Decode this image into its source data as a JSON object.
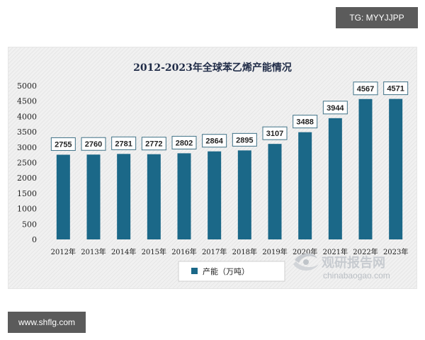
{
  "tags": {
    "top": "TG: MYYJJPP",
    "bottom": "www.shflg.com"
  },
  "watermark": {
    "cn": "观研报告网",
    "en": "chinabaogao.com",
    "icon": "swirl-logo-icon",
    "color": "#c7cbd0"
  },
  "colors": {
    "bar": "#1b6888",
    "label_border": "#3f7186"
  },
  "chart_data": {
    "type": "bar",
    "title": "2012-2023年全球苯乙烯产能情况",
    "xlabel": "",
    "ylabel": "",
    "categories": [
      "2012年",
      "2013年",
      "2014年",
      "2015年",
      "2016年",
      "2017年",
      "2018年",
      "2019年",
      "2020年",
      "2021年",
      "2022年",
      "2023年"
    ],
    "series": [
      {
        "name": "产能（万吨）",
        "values": [
          2755,
          2760,
          2781,
          2772,
          2802,
          2864,
          2895,
          3107,
          3488,
          3944,
          4567,
          4571
        ]
      }
    ],
    "data_labels": [
      "2755",
      "2760",
      "2781",
      "2772",
      "2802",
      "2864",
      "2895",
      "3107",
      "3488",
      "3944",
      "4567",
      "4571"
    ],
    "ylim": [
      0,
      5000
    ],
    "yticks": [
      0,
      500,
      1000,
      1500,
      2000,
      2500,
      3000,
      3500,
      4000,
      4500,
      5000
    ],
    "grid": true,
    "legend_position": "bottom-center"
  }
}
